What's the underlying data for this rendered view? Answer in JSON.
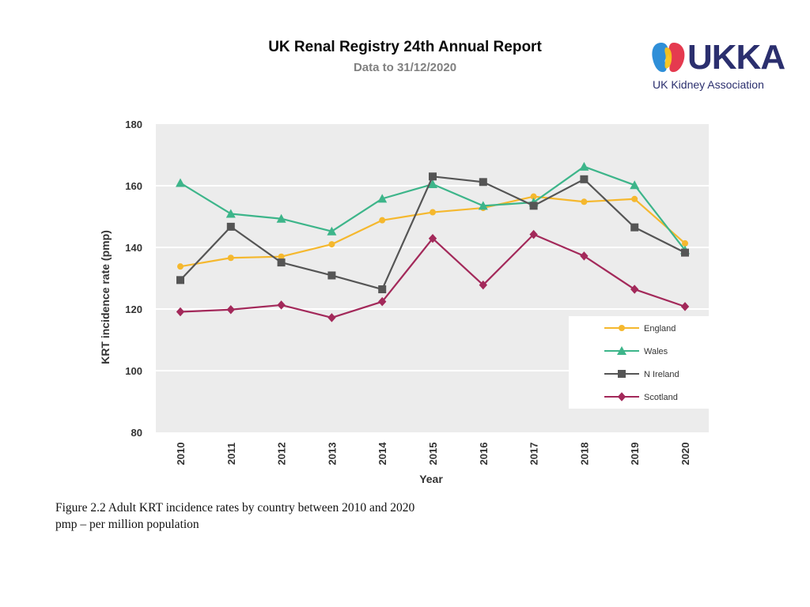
{
  "header": {
    "title": "UK Renal Registry 24th Annual Report",
    "subtitle": "Data to 31/12/2020"
  },
  "logo": {
    "wordmark": "UKKA",
    "name": "UK Kidney Association"
  },
  "caption": {
    "line1": "Figure 2.2 Adult KRT incidence rates by country between 2010 and 2020",
    "line2": "pmp – per million population"
  },
  "colors": {
    "england": "#f5b82e",
    "wales": "#3db58a",
    "n_ireland": "#555555",
    "scotland": "#a3295a",
    "plot_background": "#ececec",
    "gridline": "#ffffff"
  },
  "chart_data": {
    "type": "line",
    "title": "",
    "xlabel": "Year",
    "ylabel": "KRT incidence rate (pmp)",
    "ylim": [
      80,
      180
    ],
    "yticks": [
      80,
      100,
      120,
      140,
      160,
      180
    ],
    "grid": true,
    "legend_position": "right",
    "categories": [
      "2010",
      "2011",
      "2012",
      "2013",
      "2014",
      "2015",
      "2016",
      "2017",
      "2018",
      "2019",
      "2020"
    ],
    "series": [
      {
        "name": "England",
        "marker": "circle",
        "color": "#f5b82e",
        "values": [
          133.8,
          136.6,
          137.0,
          141.0,
          148.8,
          151.4,
          152.8,
          156.5,
          154.8,
          155.7,
          141.3
        ]
      },
      {
        "name": "Wales",
        "marker": "triangle",
        "color": "#3db58a",
        "values": [
          160.9,
          150.9,
          149.3,
          145.2,
          155.8,
          160.5,
          153.5,
          154.6,
          166.2,
          160.2,
          139.1
        ]
      },
      {
        "name": "N Ireland",
        "marker": "square",
        "color": "#555555",
        "values": [
          129.4,
          146.7,
          135.1,
          130.9,
          126.4,
          163.0,
          161.2,
          153.5,
          162.1,
          146.5,
          138.3
        ]
      },
      {
        "name": "Scotland",
        "marker": "diamond",
        "color": "#a3295a",
        "values": [
          119.1,
          119.8,
          121.3,
          117.2,
          122.4,
          142.9,
          127.8,
          144.2,
          137.2,
          126.4,
          120.8
        ]
      }
    ]
  }
}
